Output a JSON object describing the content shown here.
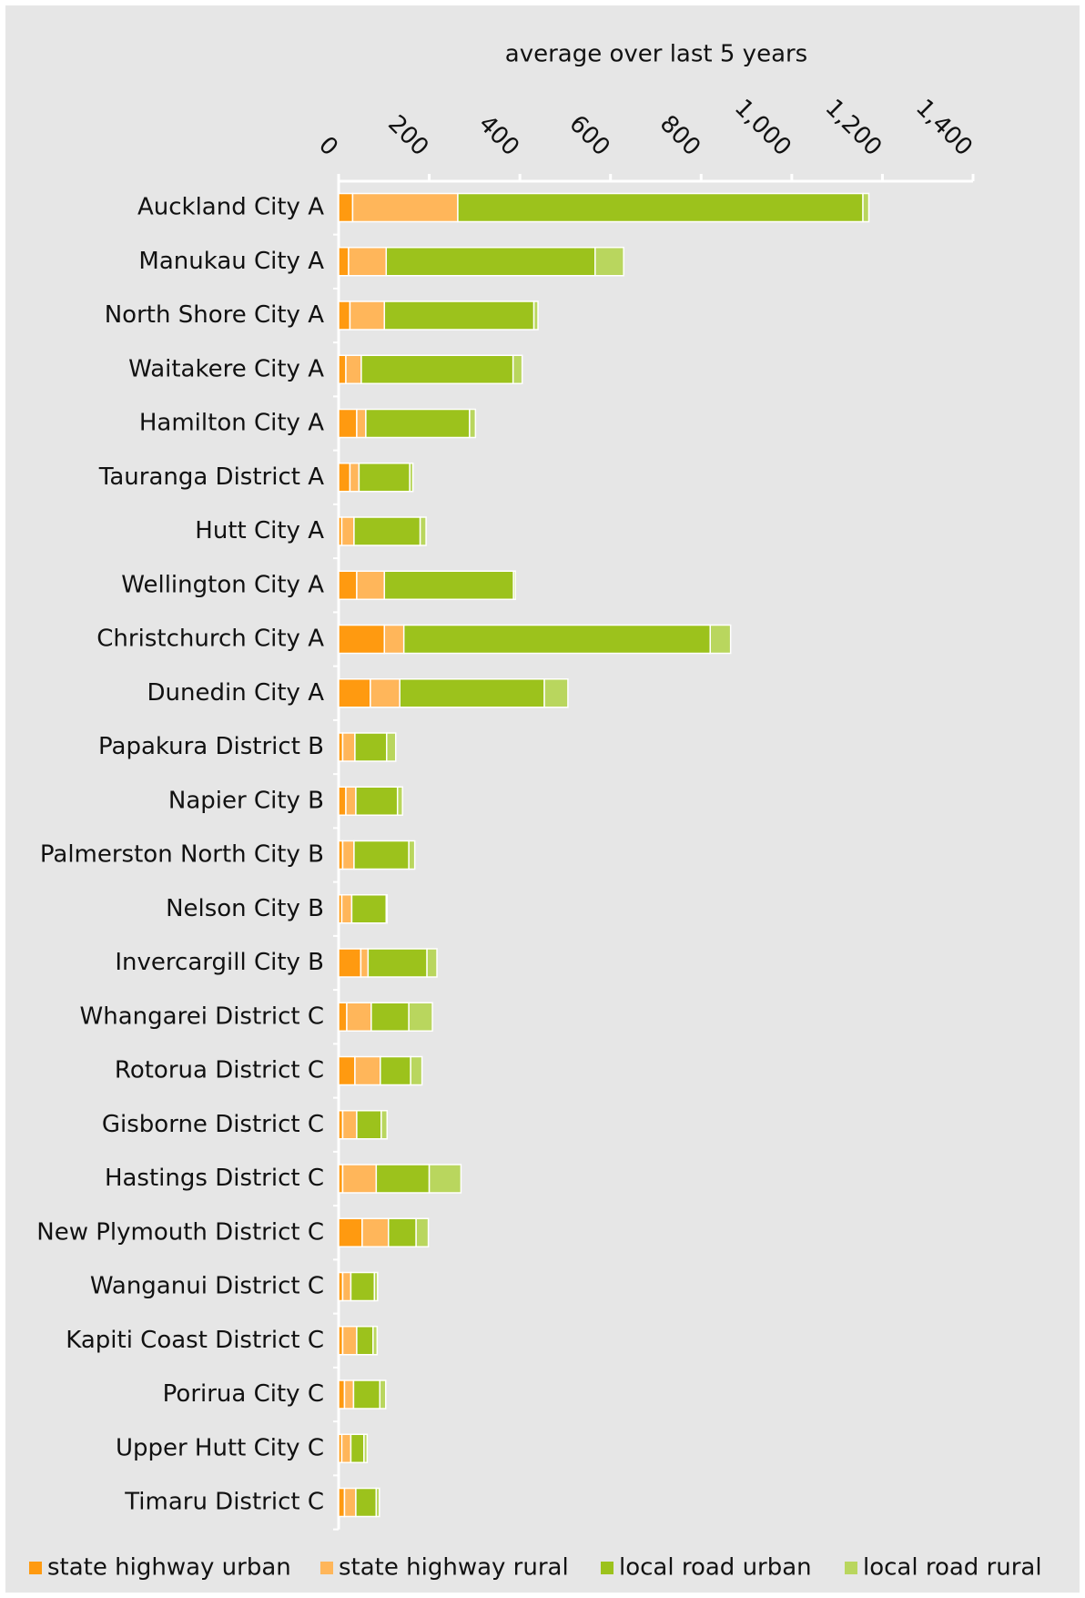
{
  "chart_data": {
    "type": "stacked_barh",
    "x_label": "average over last 5 years",
    "categories": [
      "Auckland City A",
      "Manukau City A",
      "North Shore City A",
      "Waitakere City A",
      "Hamilton City A",
      "Tauranga District A",
      "Hutt City A",
      "Wellington City A",
      "Christchurch City A",
      "Dunedin City A",
      "Papakura District B",
      "Napier City B",
      "Palmerston North City B",
      "Nelson City B",
      "Invercargill City B",
      "Whangarei District C",
      "Rotorua District C",
      "Gisborne District C",
      "Hastings District C",
      "New Plymouth District C",
      "Wanganui District C",
      "Kapiti Coast District C",
      "Porirua City C",
      "Upper Hutt City C",
      "Timaru District C"
    ],
    "series": [
      {
        "name": "state highway urban",
        "color": "#ff9a10",
        "values": [
          31,
          22,
          25,
          16,
          40,
          25,
          7,
          40,
          101,
          70,
          9,
          16,
          9,
          7,
          49,
          18,
          36,
          9,
          9,
          52,
          9,
          9,
          13,
          7,
          13
        ]
      },
      {
        "name": "state highway rural",
        "color": "#ffb65a",
        "values": [
          232,
          83,
          76,
          34,
          20,
          20,
          27,
          61,
          43,
          65,
          27,
          22,
          25,
          22,
          16,
          54,
          56,
          31,
          74,
          58,
          18,
          31,
          20,
          20,
          25
        ]
      },
      {
        "name": "local road urban",
        "color": "#9cc21c",
        "values": [
          894,
          461,
          330,
          335,
          229,
          112,
          146,
          285,
          676,
          319,
          70,
          92,
          121,
          76,
          130,
          83,
          67,
          54,
          117,
          61,
          52,
          36,
          58,
          29,
          45
        ]
      },
      {
        "name": "local road rural",
        "color": "#b9d65e",
        "values": [
          13,
          63,
          9,
          20,
          13,
          7,
          13,
          4,
          45,
          52,
          20,
          11,
          13,
          2,
          22,
          52,
          25,
          13,
          70,
          27,
          7,
          9,
          13,
          7,
          7
        ]
      }
    ],
    "xlim": [
      0,
      1400
    ],
    "xticks": [
      0,
      200,
      400,
      600,
      800,
      {
        "value": 1000,
        "label": "1,000"
      },
      {
        "value": 1200,
        "label": "1,200"
      },
      {
        "value": 1400,
        "label": "1,400"
      }
    ],
    "legend": "bottom"
  }
}
